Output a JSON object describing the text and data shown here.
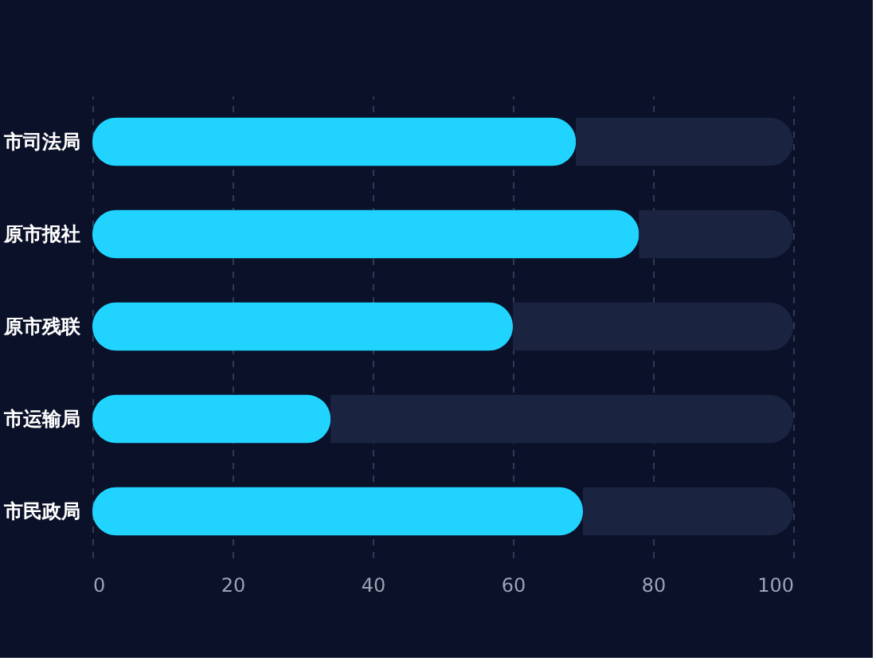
{
  "chart_data": {
    "type": "bar",
    "orientation": "horizontal",
    "stacked": true,
    "categories": [
      "市司法局",
      "原市报社",
      "原市残联",
      "市运输局",
      "市民政局"
    ],
    "series": [
      {
        "color": "#20d4ff",
        "values": [
          69,
          78,
          60,
          34,
          70
        ]
      },
      {
        "color": "#1a2340",
        "values": [
          31,
          22,
          40,
          66,
          30
        ]
      }
    ],
    "xlim": [
      0,
      100
    ],
    "xticks": [
      0,
      20,
      40,
      60,
      80,
      100
    ],
    "grid": "x"
  }
}
